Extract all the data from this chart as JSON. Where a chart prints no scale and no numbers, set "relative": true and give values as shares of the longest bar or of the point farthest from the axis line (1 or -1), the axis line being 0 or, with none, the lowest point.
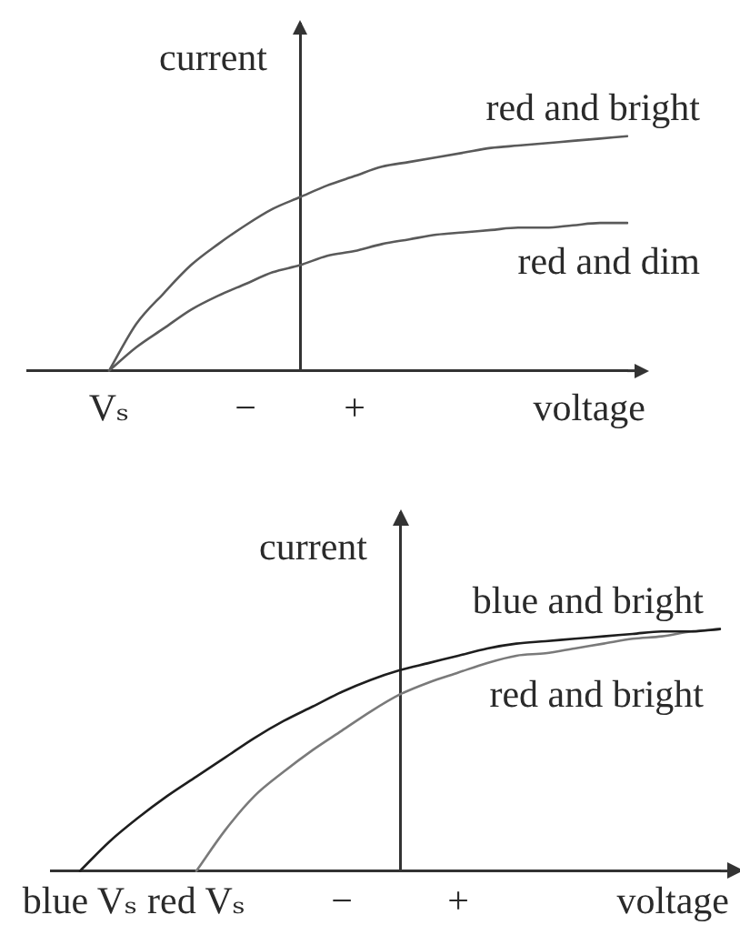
{
  "chart_data": [
    {
      "type": "line",
      "relative": true,
      "xlabel": "voltage",
      "ylabel": "current",
      "categories": [
        null,
        null,
        null,
        "Vₛ",
        null,
        null,
        null,
        null,
        "−",
        null,
        null,
        null,
        "+",
        null,
        null,
        null,
        null,
        null,
        null,
        null,
        null,
        null,
        null
      ],
      "series": [
        {
          "name": "red and bright",
          "color": "#5a5a5a",
          "values": [
            null,
            null,
            null,
            0,
            0.2,
            0.33,
            0.45,
            0.54,
            0.62,
            0.69,
            0.74,
            0.79,
            0.83,
            0.87,
            0.89,
            0.91,
            0.93,
            0.95,
            0.96,
            0.97,
            0.98,
            0.99,
            1
          ]
        },
        {
          "name": "red and dim",
          "color": "#5a5a5a",
          "values": [
            null,
            null,
            null,
            0,
            0.1,
            0.18,
            0.26,
            0.32,
            0.37,
            0.42,
            0.45,
            0.49,
            0.51,
            0.54,
            0.56,
            0.58,
            0.59,
            0.6,
            0.61,
            0.61,
            0.62,
            0.63,
            0.63
          ]
        }
      ]
    },
    {
      "type": "line",
      "relative": true,
      "xlabel": "voltage",
      "ylabel": "current",
      "categories": [
        null,
        "blue Vₛ",
        null,
        null,
        null,
        "red Vₛ",
        null,
        null,
        null,
        null,
        "−",
        null,
        null,
        null,
        "+",
        null,
        null,
        null,
        null,
        null,
        null,
        null,
        null,
        null
      ],
      "series": [
        {
          "name": "blue and bright",
          "color": "#1e1e1e",
          "values": [
            null,
            0,
            0.12,
            0.22,
            0.31,
            0.39,
            0.47,
            0.55,
            0.62,
            0.68,
            0.74,
            0.79,
            0.83,
            0.86,
            0.89,
            0.92,
            0.94,
            0.95,
            0.96,
            0.97,
            0.98,
            0.99,
            0.99,
            1
          ]
        },
        {
          "name": "red and bright",
          "color": "#7a7a7a",
          "values": [
            null,
            null,
            null,
            null,
            null,
            0,
            0.17,
            0.31,
            0.41,
            0.5,
            0.58,
            0.66,
            0.73,
            0.78,
            0.82,
            0.86,
            0.89,
            0.9,
            0.92,
            0.94,
            0.96,
            0.97,
            0.99,
            1
          ]
        }
      ]
    }
  ]
}
